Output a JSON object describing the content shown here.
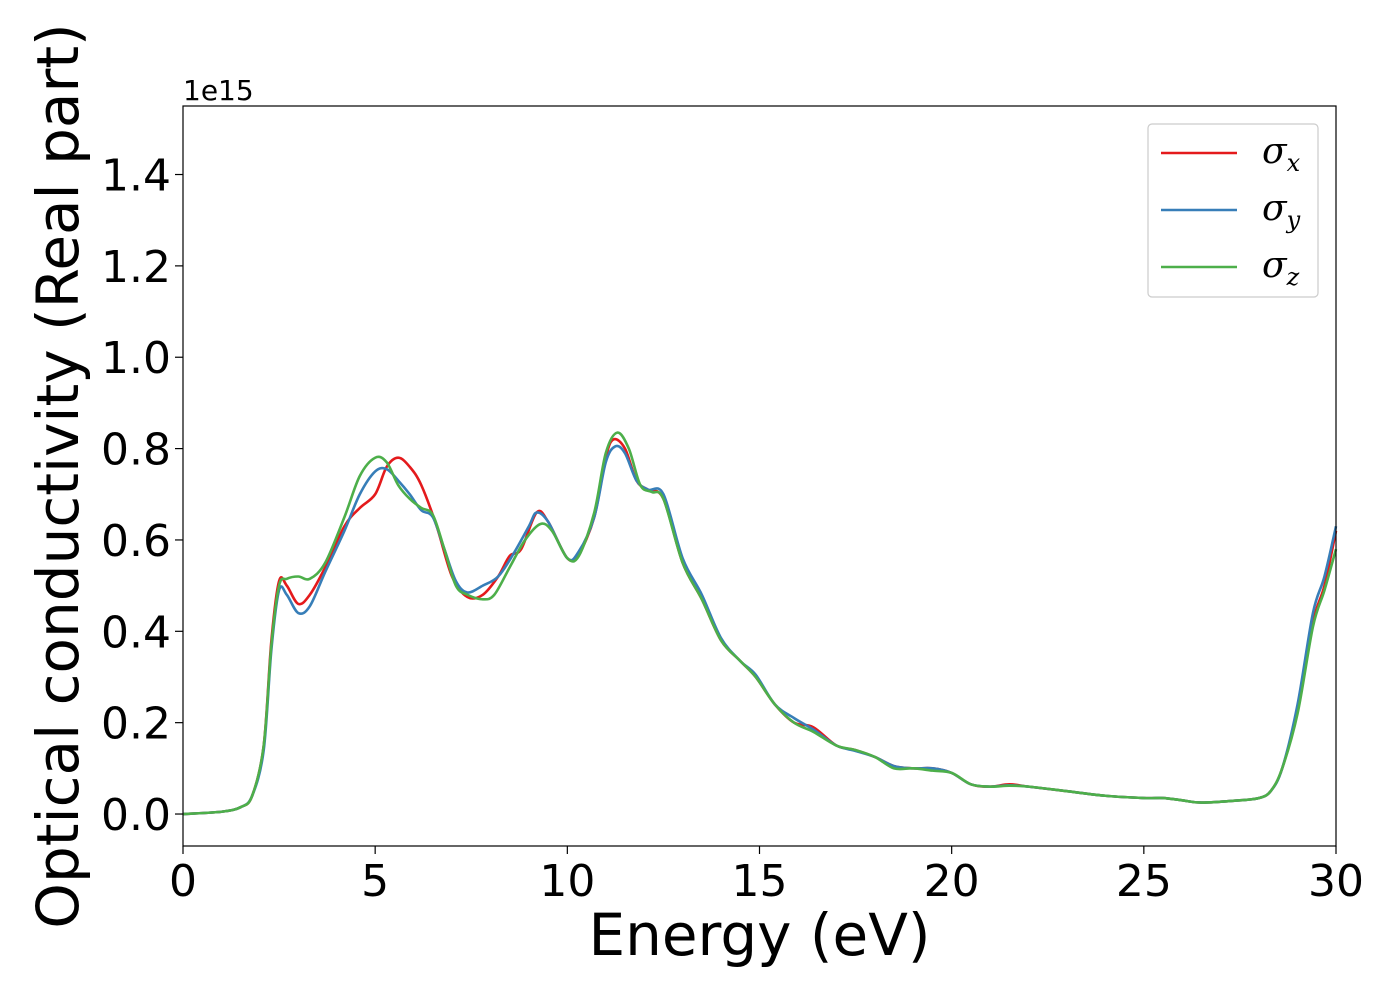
{
  "chart_data": {
    "type": "line",
    "xlabel": "Energy (eV)",
    "ylabel": "Optical conductivity (Real part)",
    "y_offset_text": "1e15",
    "xlim": [
      0,
      30
    ],
    "ylim": [
      -0.07,
      1.55
    ],
    "x_ticks": [
      0,
      5,
      10,
      15,
      20,
      25,
      30
    ],
    "x_tick_labels": [
      "0",
      "5",
      "10",
      "15",
      "20",
      "25",
      "30"
    ],
    "y_ticks": [
      0.0,
      0.2,
      0.4,
      0.6,
      0.8,
      1.0,
      1.2,
      1.4
    ],
    "y_tick_labels": [
      "0.0",
      "0.2",
      "0.4",
      "0.6",
      "0.8",
      "1.0",
      "1.2",
      "1.4"
    ],
    "grid": false,
    "legend_position": "top-right",
    "colors": {
      "sigma_x": "#e41a1c",
      "sigma_y": "#377eb8",
      "sigma_z": "#4daf4a"
    },
    "series": [
      {
        "name": "σx",
        "symbol": "σ",
        "subscript": "x",
        "color": "#e41a1c",
        "points": [
          [
            0,
            0
          ],
          [
            1,
            0.005
          ],
          [
            1.5,
            0.015
          ],
          [
            1.8,
            0.04
          ],
          [
            2.1,
            0.15
          ],
          [
            2.3,
            0.38
          ],
          [
            2.5,
            0.51
          ],
          [
            2.7,
            0.5
          ],
          [
            3,
            0.46
          ],
          [
            3.3,
            0.48
          ],
          [
            3.7,
            0.54
          ],
          [
            4.2,
            0.63
          ],
          [
            4.6,
            0.67
          ],
          [
            5,
            0.7
          ],
          [
            5.3,
            0.76
          ],
          [
            5.6,
            0.78
          ],
          [
            5.9,
            0.76
          ],
          [
            6.2,
            0.72
          ],
          [
            6.6,
            0.63
          ],
          [
            7,
            0.52
          ],
          [
            7.4,
            0.475
          ],
          [
            7.8,
            0.48
          ],
          [
            8.2,
            0.52
          ],
          [
            8.5,
            0.565
          ],
          [
            8.8,
            0.58
          ],
          [
            9.2,
            0.66
          ],
          [
            9.5,
            0.64
          ],
          [
            10,
            0.56
          ],
          [
            10.3,
            0.57
          ],
          [
            10.7,
            0.65
          ],
          [
            11,
            0.78
          ],
          [
            11.2,
            0.82
          ],
          [
            11.5,
            0.8
          ],
          [
            11.8,
            0.73
          ],
          [
            12.1,
            0.71
          ],
          [
            12.5,
            0.69
          ],
          [
            13,
            0.55
          ],
          [
            13.5,
            0.47
          ],
          [
            14,
            0.38
          ],
          [
            14.5,
            0.335
          ],
          [
            14.9,
            0.3
          ],
          [
            15.4,
            0.24
          ],
          [
            15.9,
            0.2
          ],
          [
            16.4,
            0.19
          ],
          [
            17,
            0.15
          ],
          [
            17.5,
            0.14
          ],
          [
            18,
            0.125
          ],
          [
            18.5,
            0.105
          ],
          [
            19,
            0.1
          ],
          [
            19.5,
            0.1
          ],
          [
            20,
            0.09
          ],
          [
            20.5,
            0.065
          ],
          [
            21,
            0.06
          ],
          [
            21.5,
            0.065
          ],
          [
            22,
            0.06
          ],
          [
            23,
            0.05
          ],
          [
            24,
            0.04
          ],
          [
            25,
            0.035
          ],
          [
            25.5,
            0.035
          ],
          [
            26,
            0.03
          ],
          [
            26.5,
            0.025
          ],
          [
            27.5,
            0.03
          ],
          [
            28,
            0.035
          ],
          [
            28.3,
            0.05
          ],
          [
            28.6,
            0.1
          ],
          [
            29,
            0.23
          ],
          [
            29.4,
            0.42
          ],
          [
            29.7,
            0.5
          ],
          [
            30,
            0.62
          ]
        ]
      },
      {
        "name": "σy",
        "symbol": "σ",
        "subscript": "y",
        "color": "#377eb8",
        "points": [
          [
            0,
            0
          ],
          [
            1,
            0.005
          ],
          [
            1.5,
            0.015
          ],
          [
            1.8,
            0.04
          ],
          [
            2.1,
            0.14
          ],
          [
            2.3,
            0.36
          ],
          [
            2.5,
            0.49
          ],
          [
            2.7,
            0.48
          ],
          [
            3,
            0.44
          ],
          [
            3.3,
            0.455
          ],
          [
            3.7,
            0.53
          ],
          [
            4.2,
            0.62
          ],
          [
            4.6,
            0.7
          ],
          [
            5,
            0.75
          ],
          [
            5.3,
            0.755
          ],
          [
            5.6,
            0.73
          ],
          [
            5.9,
            0.7
          ],
          [
            6.2,
            0.665
          ],
          [
            6.5,
            0.65
          ],
          [
            6.8,
            0.58
          ],
          [
            7.1,
            0.51
          ],
          [
            7.4,
            0.485
          ],
          [
            7.8,
            0.5
          ],
          [
            8.2,
            0.52
          ],
          [
            8.6,
            0.57
          ],
          [
            9,
            0.63
          ],
          [
            9.2,
            0.66
          ],
          [
            9.5,
            0.64
          ],
          [
            10,
            0.56
          ],
          [
            10.3,
            0.575
          ],
          [
            10.7,
            0.65
          ],
          [
            11,
            0.77
          ],
          [
            11.25,
            0.805
          ],
          [
            11.5,
            0.79
          ],
          [
            11.8,
            0.73
          ],
          [
            12.1,
            0.71
          ],
          [
            12.5,
            0.7
          ],
          [
            13,
            0.56
          ],
          [
            13.5,
            0.48
          ],
          [
            14,
            0.385
          ],
          [
            14.5,
            0.335
          ],
          [
            14.9,
            0.305
          ],
          [
            15.4,
            0.24
          ],
          [
            15.9,
            0.21
          ],
          [
            16.4,
            0.185
          ],
          [
            17,
            0.15
          ],
          [
            17.5,
            0.138
          ],
          [
            18,
            0.125
          ],
          [
            18.5,
            0.105
          ],
          [
            19,
            0.1
          ],
          [
            19.5,
            0.1
          ],
          [
            20,
            0.09
          ],
          [
            20.5,
            0.065
          ],
          [
            21,
            0.06
          ],
          [
            21.5,
            0.063
          ],
          [
            22,
            0.06
          ],
          [
            23,
            0.05
          ],
          [
            24,
            0.04
          ],
          [
            25,
            0.035
          ],
          [
            25.5,
            0.035
          ],
          [
            26,
            0.03
          ],
          [
            26.5,
            0.025
          ],
          [
            27.5,
            0.03
          ],
          [
            28,
            0.035
          ],
          [
            28.3,
            0.05
          ],
          [
            28.6,
            0.1
          ],
          [
            29,
            0.24
          ],
          [
            29.4,
            0.44
          ],
          [
            29.7,
            0.52
          ],
          [
            30,
            0.63
          ]
        ]
      },
      {
        "name": "σz",
        "symbol": "σ",
        "subscript": "z",
        "color": "#4daf4a",
        "points": [
          [
            0,
            0
          ],
          [
            1,
            0.005
          ],
          [
            1.5,
            0.015
          ],
          [
            1.8,
            0.04
          ],
          [
            2.1,
            0.15
          ],
          [
            2.3,
            0.37
          ],
          [
            2.5,
            0.5
          ],
          [
            2.7,
            0.515
          ],
          [
            3,
            0.52
          ],
          [
            3.3,
            0.515
          ],
          [
            3.7,
            0.55
          ],
          [
            4.2,
            0.65
          ],
          [
            4.6,
            0.74
          ],
          [
            5,
            0.78
          ],
          [
            5.3,
            0.77
          ],
          [
            5.6,
            0.72
          ],
          [
            5.9,
            0.69
          ],
          [
            6.2,
            0.67
          ],
          [
            6.5,
            0.655
          ],
          [
            6.8,
            0.58
          ],
          [
            7.1,
            0.5
          ],
          [
            7.4,
            0.48
          ],
          [
            7.8,
            0.47
          ],
          [
            8.1,
            0.48
          ],
          [
            8.5,
            0.54
          ],
          [
            8.9,
            0.6
          ],
          [
            9.3,
            0.635
          ],
          [
            9.6,
            0.62
          ],
          [
            10,
            0.56
          ],
          [
            10.3,
            0.565
          ],
          [
            10.7,
            0.66
          ],
          [
            11,
            0.79
          ],
          [
            11.3,
            0.835
          ],
          [
            11.6,
            0.8
          ],
          [
            11.9,
            0.72
          ],
          [
            12.2,
            0.705
          ],
          [
            12.5,
            0.69
          ],
          [
            13,
            0.55
          ],
          [
            13.5,
            0.47
          ],
          [
            14,
            0.38
          ],
          [
            14.5,
            0.335
          ],
          [
            14.9,
            0.3
          ],
          [
            15.4,
            0.24
          ],
          [
            15.9,
            0.2
          ],
          [
            16.4,
            0.18
          ],
          [
            17,
            0.15
          ],
          [
            17.5,
            0.14
          ],
          [
            18,
            0.125
          ],
          [
            18.5,
            0.1
          ],
          [
            19,
            0.1
          ],
          [
            19.5,
            0.095
          ],
          [
            20,
            0.09
          ],
          [
            20.5,
            0.065
          ],
          [
            21,
            0.06
          ],
          [
            21.5,
            0.062
          ],
          [
            22,
            0.06
          ],
          [
            23,
            0.05
          ],
          [
            24,
            0.04
          ],
          [
            25,
            0.035
          ],
          [
            25.5,
            0.035
          ],
          [
            26,
            0.03
          ],
          [
            26.5,
            0.025
          ],
          [
            27.5,
            0.03
          ],
          [
            28,
            0.035
          ],
          [
            28.3,
            0.05
          ],
          [
            28.6,
            0.1
          ],
          [
            29,
            0.22
          ],
          [
            29.4,
            0.41
          ],
          [
            29.7,
            0.49
          ],
          [
            30,
            0.58
          ]
        ]
      }
    ]
  }
}
